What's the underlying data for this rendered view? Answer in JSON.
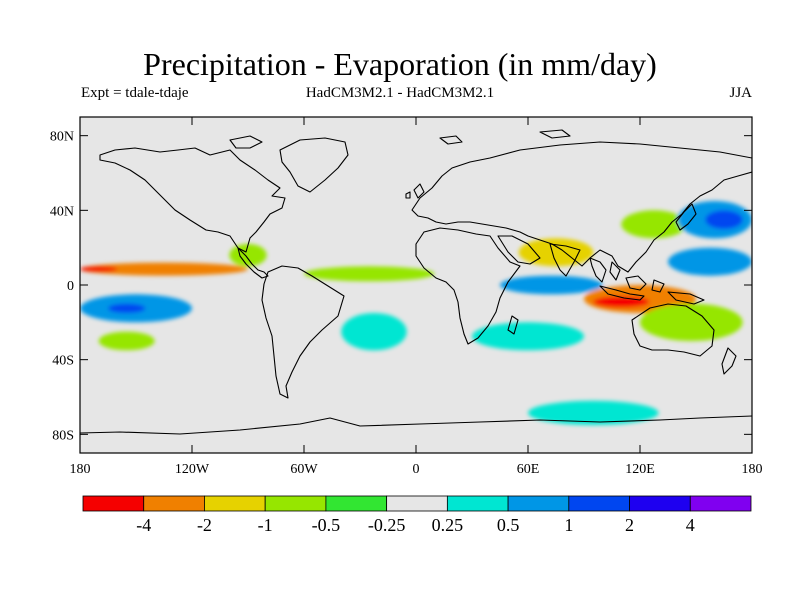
{
  "header": {
    "title": "Precipitation - Evaporation (in mm/day)",
    "experiment": "Expt = tdale-tdaje",
    "models": "HadCM3M2.1 - HadCM3M2.1",
    "season": "JJA"
  },
  "map": {
    "projection": "cylindrical-equidistant",
    "lon_range": [
      -180,
      180
    ],
    "lat_range": [
      -90,
      90
    ],
    "land_outline_color": "#000000",
    "background_color": "#e6e6e6",
    "lat_ticks": [
      {
        "value": 80,
        "label": "80N"
      },
      {
        "value": 40,
        "label": "40N"
      },
      {
        "value": 0,
        "label": "0"
      },
      {
        "value": -40,
        "label": "40S"
      },
      {
        "value": -80,
        "label": "80S"
      }
    ],
    "lon_ticks": [
      {
        "value": -180,
        "label": "180"
      },
      {
        "value": -120,
        "label": "120W"
      },
      {
        "value": -60,
        "label": "60W"
      },
      {
        "value": 0,
        "label": "0"
      },
      {
        "value": 60,
        "label": "60E"
      },
      {
        "value": 120,
        "label": "120E"
      },
      {
        "value": 180,
        "label": "180"
      }
    ]
  },
  "colorbar": {
    "colors": [
      "#f50000",
      "#f08000",
      "#e6d200",
      "#96e600",
      "#32e632",
      "#e6e6e6",
      "#00e6d2",
      "#0096e6",
      "#0046f0",
      "#1e00f0",
      "#8000f0"
    ],
    "labels": [
      "-4",
      "-2",
      "-1",
      "-0.5",
      "-0.25",
      "0.25",
      "0.5",
      "1",
      "2",
      "4"
    ]
  },
  "chart_data": {
    "type": "heatmap",
    "title": "Precipitation - Evaporation (in mm/day)",
    "subtitle_left": "Expt = tdale-tdaje",
    "subtitle_center": "HadCM3M2.1 - HadCM3M2.1",
    "subtitle_right": "JJA",
    "xlabel": "",
    "ylabel": "",
    "xlim": [
      -180,
      180
    ],
    "ylim": [
      -90,
      90
    ],
    "levels": [
      -4,
      -2,
      -1,
      -0.5,
      -0.25,
      0.25,
      0.5,
      1,
      2,
      4
    ],
    "anomaly_features": [
      {
        "name": "East Pacific ITCZ band",
        "lon": [
          -180,
          -90
        ],
        "lat": [
          5,
          12
        ],
        "value": -2
      },
      {
        "name": "East Pacific ITCZ core",
        "lon": [
          -180,
          -160
        ],
        "lat": [
          7,
          10
        ],
        "value": -4
      },
      {
        "name": "Central Atlantic band",
        "lon": [
          -60,
          10
        ],
        "lat": [
          2,
          10
        ],
        "value": -0.5
      },
      {
        "name": "Central America",
        "lon": [
          -100,
          -80
        ],
        "lat": [
          10,
          22
        ],
        "value": -0.5
      },
      {
        "name": "Arabian Sea / India",
        "lon": [
          55,
          95
        ],
        "lat": [
          10,
          25
        ],
        "value": -1
      },
      {
        "name": "Maritime Continent",
        "lon": [
          90,
          150
        ],
        "lat": [
          -15,
          0
        ],
        "value": -2
      },
      {
        "name": "Maritime Continent core",
        "lon": [
          95,
          125
        ],
        "lat": [
          -12,
          -6
        ],
        "value": -4
      },
      {
        "name": "East Asia",
        "lon": [
          110,
          145
        ],
        "lat": [
          25,
          40
        ],
        "value": -0.5
      },
      {
        "name": "Southwest Pacific",
        "lon": [
          120,
          175
        ],
        "lat": [
          -30,
          -10
        ],
        "value": -0.5
      },
      {
        "name": "South Pacific",
        "lon": [
          -170,
          -140
        ],
        "lat": [
          -35,
          -25
        ],
        "value": -0.5
      },
      {
        "name": "Tropical South Pacific",
        "lon": [
          -180,
          -120
        ],
        "lat": [
          -20,
          -5
        ],
        "value": 1
      },
      {
        "name": "Tropical South Pacific core",
        "lon": [
          -165,
          -145
        ],
        "lat": [
          -15,
          -10
        ],
        "value": 2
      },
      {
        "name": "Western North Pacific",
        "lon": [
          135,
          180
        ],
        "lat": [
          5,
          20
        ],
        "value": 1
      },
      {
        "name": "North Pacific",
        "lon": [
          140,
          180
        ],
        "lat": [
          25,
          45
        ],
        "value": 1
      },
      {
        "name": "North Pacific core",
        "lon": [
          155,
          175
        ],
        "lat": [
          30,
          40
        ],
        "value": 2
      },
      {
        "name": "Indian Ocean equatorial",
        "lon": [
          45,
          100
        ],
        "lat": [
          -5,
          5
        ],
        "value": 1
      },
      {
        "name": "South Atlantic",
        "lon": [
          -40,
          -5
        ],
        "lat": [
          -35,
          -15
        ],
        "value": 0.5
      },
      {
        "name": "South Indian Ocean",
        "lon": [
          30,
          90
        ],
        "lat": [
          -35,
          -20
        ],
        "value": 0.5
      },
      {
        "name": "Southern Ocean",
        "lon": [
          60,
          130
        ],
        "lat": [
          -75,
          -62
        ],
        "value": 0.5
      }
    ]
  }
}
